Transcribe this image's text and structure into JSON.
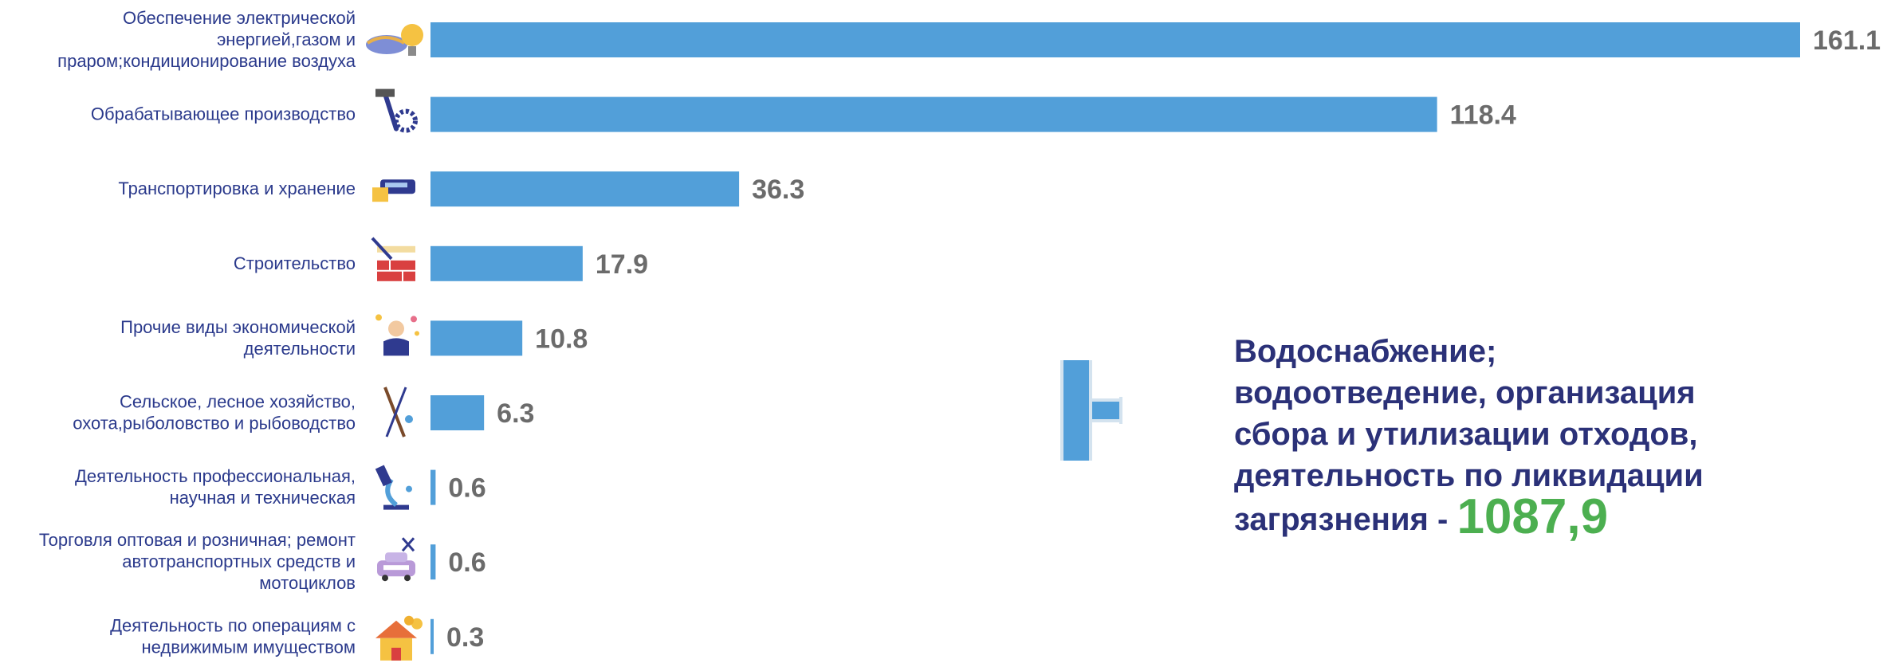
{
  "chart_data": {
    "type": "bar",
    "orientation": "horizontal",
    "categories": [
      [
        "Обеспечение электрической",
        "энергией,газом и",
        "пpаром;кондиционирование воздуха"
      ],
      [
        "Обрабатывающее производство"
      ],
      [
        "Транспортировка и хранение"
      ],
      [
        "Строительство"
      ],
      [
        "Прочие виды экономической",
        "деятельности"
      ],
      [
        "Сельское, лесное  хозяйство,",
        "охота,рыболовство и рыбоводство"
      ],
      [
        "Деятельность профессиональная,",
        "научная и техническая"
      ],
      [
        "Торговля оптовая и розничная; ремонт",
        "автотранспортных средств и",
        "мотоциклов"
      ],
      [
        "Деятельность по операциям с",
        "недвижимым имуществом"
      ]
    ],
    "values": [
      161.1,
      118.4,
      36.3,
      17.9,
      10.8,
      6.3,
      0.6,
      0.6,
      0.3
    ],
    "value_labels": [
      "161.1",
      "118.4",
      "36.3",
      "17.9",
      "10.8",
      "6.3",
      "0.6",
      "0.6",
      "0.3"
    ],
    "icons": [
      "power-plant-bulb-icon",
      "hammer-gear-icon",
      "truck-bus-icon",
      "brick-wall-trowel-icon",
      "businessman-icon",
      "fishing-rod-rifle-icon",
      "microscope-icon",
      "car-repair-icon",
      "house-coins-icon"
    ],
    "bar_color": "#529fd9",
    "label_color": "#2b3a8c",
    "value_color": "#6b6b6b",
    "xlim": [
      0,
      161.1
    ],
    "grid": false,
    "legend": "none"
  },
  "callout": {
    "lines": [
      "Водоснабжение;",
      "водоотведение, организация",
      "сбора и утилизации отходов,",
      "деятельность по ликвидации"
    ],
    "last_prefix": "загрязнения -",
    "value": "1087,9",
    "icon": "water-pipe-tee-icon",
    "text_color": "#2b3178",
    "value_color": "#4caf50"
  }
}
